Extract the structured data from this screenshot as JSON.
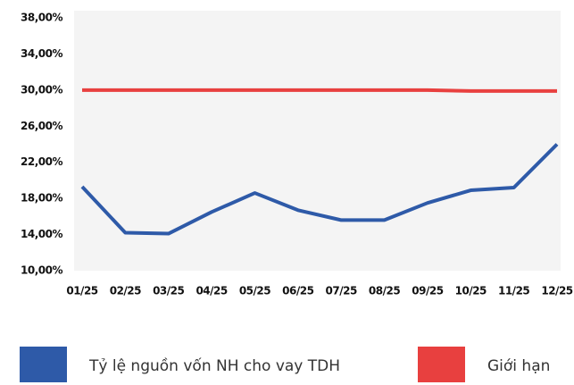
{
  "chart_data": {
    "type": "line",
    "categories": [
      "01/25",
      "02/25",
      "03/25",
      "04/25",
      "05/25",
      "06/25",
      "07/25",
      "08/25",
      "09/25",
      "10/25",
      "11/25",
      "12/25"
    ],
    "series": [
      {
        "name": "Tỷ lệ nguồn vốn NH cho vay TDH",
        "color": "#2e5aa8",
        "values": [
          19.3,
          14.2,
          14.1,
          16.5,
          18.6,
          16.7,
          15.6,
          15.6,
          17.5,
          18.9,
          19.2,
          24.0
        ]
      },
      {
        "name": "Giới hạn",
        "color": "#e8403f",
        "values": [
          30,
          30,
          30,
          30,
          30,
          30,
          30,
          30,
          30,
          29.9,
          29.9,
          29.9
        ]
      }
    ],
    "ylim": [
      10,
      38
    ],
    "yticks": [
      {
        "value": 10,
        "label": "10,00%"
      },
      {
        "value": 14,
        "label": "14,00%"
      },
      {
        "value": 18,
        "label": "18,00%"
      },
      {
        "value": 22,
        "label": "22,00%"
      },
      {
        "value": 26,
        "label": "26,00%"
      },
      {
        "value": 30,
        "label": "30,00%"
      },
      {
        "value": 34,
        "label": "34,00%"
      },
      {
        "value": 38,
        "label": "38,00%"
      }
    ],
    "legend": "bottom"
  }
}
